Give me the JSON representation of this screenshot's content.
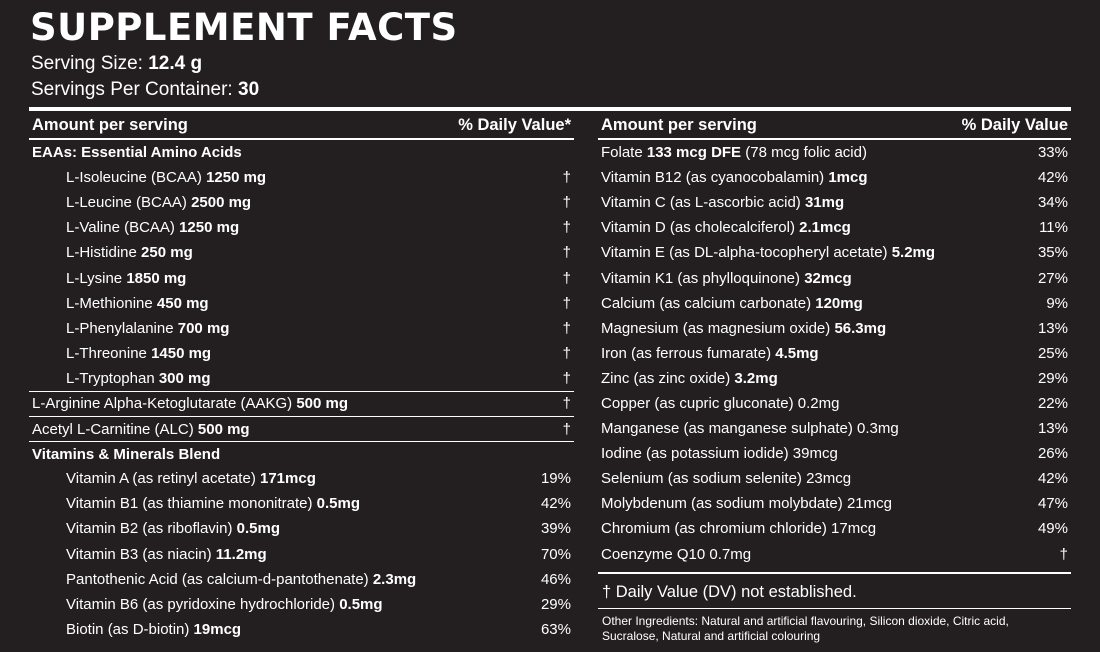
{
  "title": "SUPPLEMENT FACTS",
  "serving_size": {
    "label": "Serving Size: ",
    "value": "12.4 g"
  },
  "servings_per_container": {
    "label": "Servings Per Container: ",
    "value": "30"
  },
  "left": {
    "header": {
      "amount": "Amount per serving",
      "dv": "% Daily Value*"
    },
    "rows": [
      {
        "type": "section",
        "name": "EAAs: Essential Amino Acids",
        "amount": "",
        "dv": ""
      },
      {
        "type": "indent",
        "name": "L-Isoleucine (BCAA) ",
        "amount": "1250 mg",
        "dv": "†"
      },
      {
        "type": "indent",
        "name": "L-Leucine (BCAA) ",
        "amount": "2500 mg",
        "dv": "†"
      },
      {
        "type": "indent",
        "name": "L-Valine (BCAA) ",
        "amount": "1250 mg",
        "dv": "†"
      },
      {
        "type": "indent",
        "name": "L-Histidine ",
        "amount": "250 mg",
        "dv": "†"
      },
      {
        "type": "indent",
        "name": "L-Lysine ",
        "amount": "1850 mg",
        "dv": "†"
      },
      {
        "type": "indent",
        "name": "L-Methionine ",
        "amount": "450 mg",
        "dv": "†"
      },
      {
        "type": "indent",
        "name": "L-Phenylalanine ",
        "amount": "700 mg",
        "dv": "†"
      },
      {
        "type": "indent",
        "name": "L-Threonine ",
        "amount": "1450 mg",
        "dv": "†"
      },
      {
        "type": "indent",
        "name": "L-Tryptophan ",
        "amount": "300 mg",
        "dv": "†"
      },
      {
        "type": "boxed",
        "name": "L-Arginine Alpha-Ketoglutarate (AAKG) ",
        "amount": "500 mg",
        "dv": "†"
      },
      {
        "type": "boxed",
        "name": "Acetyl L-Carnitine (ALC) ",
        "amount": "500 mg",
        "dv": "†"
      },
      {
        "type": "section-boxed",
        "name": "Vitamins & Minerals Blend",
        "amount": "",
        "dv": ""
      },
      {
        "type": "indent",
        "name": "Vitamin A (as retinyl acetate) ",
        "amount": "171mcg",
        "dv": "19%"
      },
      {
        "type": "indent",
        "name": "Vitamin B1 (as thiamine mononitrate) ",
        "amount": "0.5mg",
        "dv": "42%"
      },
      {
        "type": "indent",
        "name": "Vitamin B2 (as riboflavin) ",
        "amount": "0.5mg",
        "dv": "39%"
      },
      {
        "type": "indent",
        "name": "Vitamin B3 (as niacin) ",
        "amount": "11.2mg",
        "dv": "70%"
      },
      {
        "type": "indent",
        "name": "Pantothenic Acid (as calcium-d-pantothenate) ",
        "amount": "2.3mg",
        "dv": "46%"
      },
      {
        "type": "indent",
        "name": "Vitamin B6 (as pyridoxine hydrochloride) ",
        "amount": "0.5mg",
        "dv": "29%"
      },
      {
        "type": "indent",
        "name": "Biotin (as D-biotin) ",
        "amount": "19mcg",
        "dv": "63%"
      }
    ]
  },
  "right": {
    "header": {
      "amount": "Amount per serving",
      "dv": "% Daily Value"
    },
    "rows": [
      {
        "name": "Folate ",
        "amount": "133 mcg DFE",
        "suffix": " (78 mcg folic acid)",
        "dv": "33%"
      },
      {
        "name": "Vitamin B12 (as cyanocobalamin) ",
        "amount": "1mcg",
        "suffix": "",
        "dv": "42%"
      },
      {
        "name": "Vitamin C (as L-ascorbic acid) ",
        "amount": "31mg",
        "suffix": "",
        "dv": "34%"
      },
      {
        "name": "Vitamin D (as cholecalciferol) ",
        "amount": "2.1mcg",
        "suffix": "",
        "dv": "11%"
      },
      {
        "name": "Vitamin E (as DL-alpha-tocopheryl acetate) ",
        "amount": "5.2mg",
        "suffix": "",
        "dv": "35%"
      },
      {
        "name": "Vitamin K1 (as phylloquinone) ",
        "amount": "32mcg",
        "suffix": "",
        "dv": "27%"
      },
      {
        "name": "Calcium (as calcium carbonate) ",
        "amount": "120mg",
        "suffix": "",
        "dv": "9%"
      },
      {
        "name": "Magnesium (as magnesium oxide) ",
        "amount": "56.3mg",
        "suffix": "",
        "dv": "13%"
      },
      {
        "name": "Iron (as ferrous fumarate) ",
        "amount": "4.5mg",
        "suffix": "",
        "dv": "25%"
      },
      {
        "name": "Zinc (as zinc oxide) ",
        "amount": "3.2mg",
        "suffix": "",
        "dv": "29%"
      },
      {
        "name": "Copper (as cupric gluconate) 0.2mg",
        "amount": "",
        "suffix": "",
        "dv": "22%"
      },
      {
        "name": "Manganese (as manganese sulphate) 0.3mg",
        "amount": "",
        "suffix": "",
        "dv": "13%"
      },
      {
        "name": "Iodine (as potassium iodide) 39mcg",
        "amount": "",
        "suffix": "",
        "dv": "26%"
      },
      {
        "name": "Selenium (as sodium selenite) 23mcg",
        "amount": "",
        "suffix": "",
        "dv": "42%"
      },
      {
        "name": "Molybdenum (as sodium molybdate) 21mcg",
        "amount": "",
        "suffix": "",
        "dv": "47%"
      },
      {
        "name": "Chromium (as chromium chloride) 17mcg",
        "amount": "",
        "suffix": "",
        "dv": "49%"
      },
      {
        "name": "Coenzyme Q10 0.7mg",
        "amount": "",
        "suffix": "",
        "dv": "†"
      }
    ]
  },
  "dv_note": "† Daily Value (DV) not established.",
  "other_ingredients": "Other Ingredients: Natural and artificial flavouring, Silicon dioxide, Citric acid, Sucralose, Natural and artificial colouring"
}
